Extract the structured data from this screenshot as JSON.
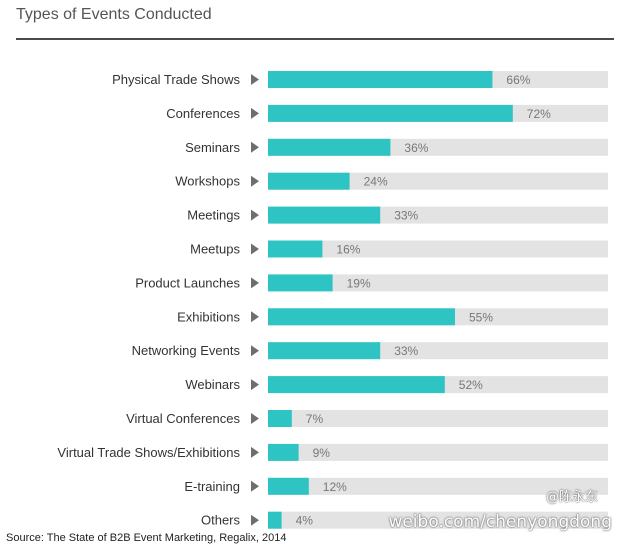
{
  "chart_data": {
    "type": "bar",
    "orientation": "horizontal",
    "title": "Types of Events Conducted",
    "categories": [
      "Physical Trade Shows",
      "Conferences",
      "Seminars",
      "Workshops",
      "Meetings",
      "Meetups",
      "Product Launches",
      "Exhibitions",
      "Networking Events",
      "Webinars",
      "Virtual Conferences",
      "Virtual Trade Shows/Exhibitions",
      "E-training",
      "Others"
    ],
    "values": [
      66,
      72,
      36,
      24,
      33,
      16,
      19,
      55,
      33,
      52,
      7,
      9,
      12,
      4
    ],
    "value_labels": [
      "66%",
      "72%",
      "36%",
      "24%",
      "33%",
      "16%",
      "19%",
      "55%",
      "33%",
      "52%",
      "7%",
      "9%",
      "12%",
      "4%"
    ],
    "xlim": [
      0,
      100
    ],
    "grid": false,
    "legend": "none",
    "colors": {
      "bar": "#2ec4c4",
      "track": "#e3e3e3",
      "marker": "#6e6e6e"
    }
  },
  "source": "Source: The State of B2B Event Marketing, Regalix, 2014",
  "watermark": {
    "handle": "@陈永东",
    "url": "weibo.com/chenyongdong"
  }
}
